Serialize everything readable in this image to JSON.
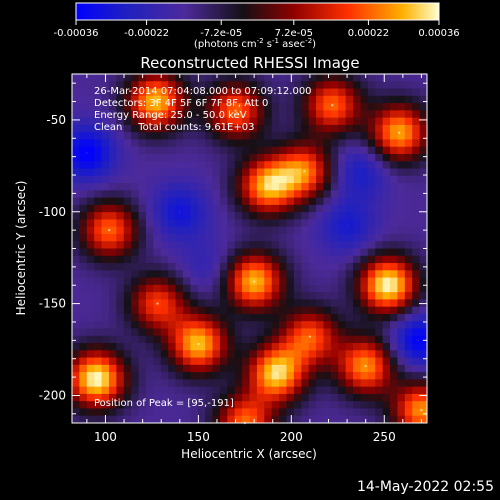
{
  "chart_data": {
    "type": "heatmap",
    "title": "Reconstructed RHESSI Image",
    "xlabel": "Heliocentric X (arcsec)",
    "ylabel": "Heliocentric Y (arcsec)",
    "xlim": [
      82,
      273
    ],
    "ylim": [
      -215,
      -25
    ],
    "x_ticks": [
      "100",
      "150",
      "200",
      "250"
    ],
    "y_ticks": [
      "-50",
      "-100",
      "-150",
      "-200"
    ],
    "x_tick_values": [
      100,
      150,
      200,
      250
    ],
    "y_tick_values": [
      -50,
      -100,
      -150,
      -200
    ],
    "colorbar": {
      "range": [
        -0.00036,
        0.00036
      ],
      "tick_labels": [
        "-0.00036",
        "-0.00022",
        "-7.2e-05",
        "7.2e-05",
        "0.00022",
        "0.00036"
      ],
      "tick_values": [
        -0.00036,
        -0.00022,
        -7.2e-05,
        7.2e-05,
        0.00022,
        0.00036
      ],
      "units_parts": [
        "(photons cm",
        "-2",
        " s",
        "-1",
        " asec",
        "-2",
        ")"
      ]
    },
    "annotations": [
      "26-Mar-2014 07:04:08.000 to 07:09:12.000",
      "Detectors: 3F 4F 5F 6F 7F 8F, Att 0",
      "Energy Range: 25.0 - 50.0 keV",
      "Clean     Total counts: 9.61E+03"
    ],
    "peak_label": "Position of Peak = [95,-191]",
    "peak": [
      95,
      -191
    ],
    "bright_sources": [
      {
        "x": 127,
        "y": -40,
        "value": 0.0003
      },
      {
        "x": 170,
        "y": -45,
        "value": 0.00022
      },
      {
        "x": 222,
        "y": -42,
        "value": 0.00022
      },
      {
        "x": 258,
        "y": -57,
        "value": 0.00028
      },
      {
        "x": 252,
        "y": -140,
        "value": 0.00036
      },
      {
        "x": 187,
        "y": -86,
        "value": 0.00028
      },
      {
        "x": 207,
        "y": -78,
        "value": 0.00022
      },
      {
        "x": 102,
        "y": -110,
        "value": 0.00022
      },
      {
        "x": 180,
        "y": -138,
        "value": 0.0003
      },
      {
        "x": 210,
        "y": -168,
        "value": 0.0002
      },
      {
        "x": 95,
        "y": -191,
        "value": 0.00036
      },
      {
        "x": 150,
        "y": -172,
        "value": 0.0003
      },
      {
        "x": 192,
        "y": -188,
        "value": 0.00032
      },
      {
        "x": 240,
        "y": -184,
        "value": 0.00026
      },
      {
        "x": 270,
        "y": -208,
        "value": 0.00026
      },
      {
        "x": 175,
        "y": -215,
        "value": 0.00022
      },
      {
        "x": 128,
        "y": -150,
        "value": 0.00018
      }
    ],
    "dark_sources": [
      {
        "x": 90,
        "y": -68,
        "value": -0.00036
      },
      {
        "x": 140,
        "y": -100,
        "value": -0.0003
      },
      {
        "x": 230,
        "y": -108,
        "value": -0.00028
      },
      {
        "x": 155,
        "y": -130,
        "value": -0.00022
      },
      {
        "x": 268,
        "y": -170,
        "value": -0.00036
      },
      {
        "x": 237,
        "y": -78,
        "value": -0.00028
      }
    ]
  },
  "footer": {
    "date": "14-May-2022 02:55"
  }
}
